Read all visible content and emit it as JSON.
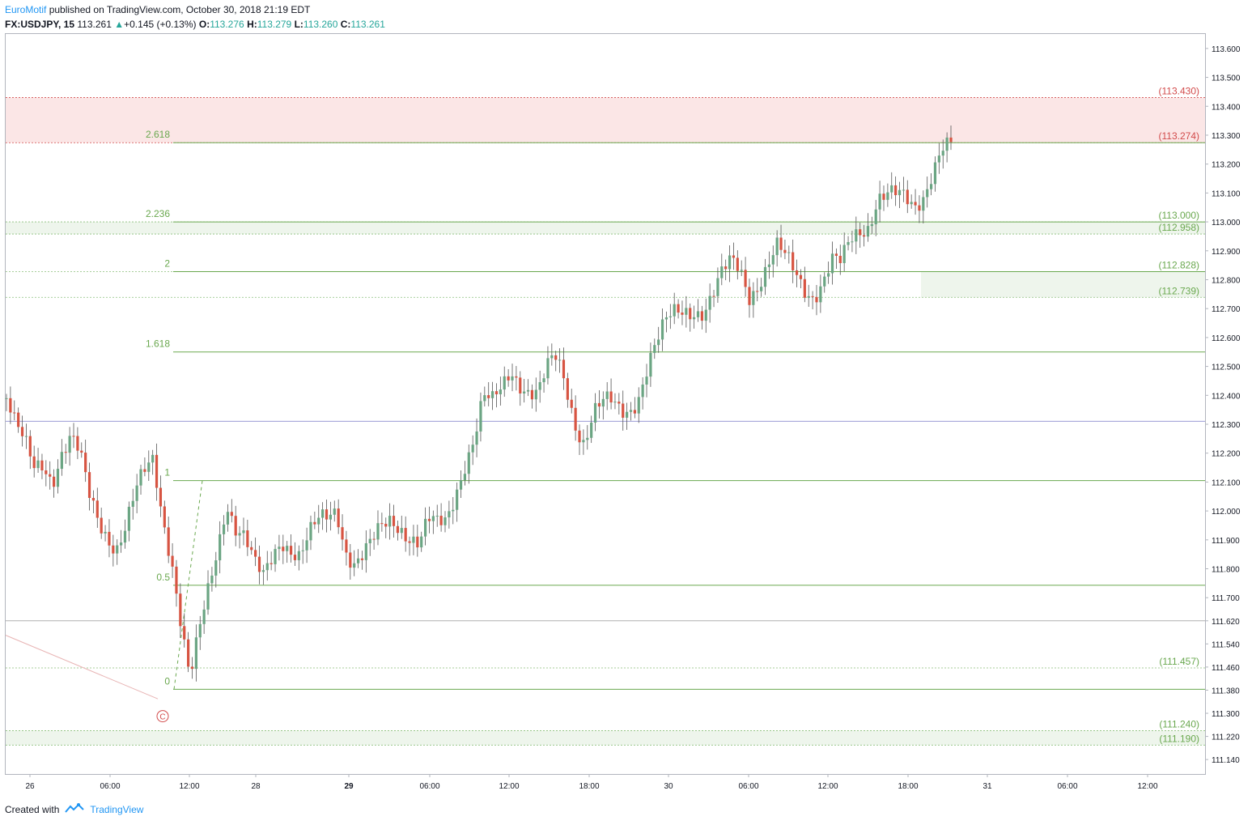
{
  "header": {
    "author": "EuroMotif",
    "published": "published on TradingView.com, October 30, 2018 21:19 EDT",
    "symbol": "FX:USDJPY, 15",
    "last": "113.261",
    "change": "+0.145 (+0.13%)",
    "o_label": "O:",
    "o": "113.276",
    "h_label": "H:",
    "h": "113.279",
    "l_label": "L:",
    "l": "113.260",
    "c_label": "C:",
    "c": "113.261"
  },
  "footer": {
    "created": "Created with",
    "brand": "TradingView"
  },
  "colors": {
    "up": "#6ba583",
    "down": "#d75442",
    "fib": "#6aa84f",
    "zone_red": "#fbe6e6",
    "zone_green": "#eef5ec",
    "red_label": "#d24b4b"
  },
  "chart_data": {
    "type": "candlestick",
    "symbol": "FX:USDJPY",
    "interval": "15",
    "ylim": [
      111.09,
      113.65
    ],
    "y_ticks": [
      "113.600",
      "113.500",
      "113.400",
      "113.300",
      "113.200",
      "113.100",
      "113.000",
      "112.900",
      "112.800",
      "112.700",
      "112.600",
      "112.500",
      "112.400",
      "112.300",
      "112.200",
      "112.100",
      "112.000",
      "111.900",
      "111.800",
      "111.700",
      "111.620",
      "111.540",
      "111.460",
      "111.380",
      "111.300",
      "111.220",
      "111.140"
    ],
    "x_ticks": [
      "26",
      "06:00",
      "12:00",
      "28",
      "29",
      "06:00",
      "12:00",
      "18:00",
      "30",
      "06:00",
      "12:00",
      "18:00",
      "31",
      "06:00",
      "12:00"
    ],
    "fib_levels": [
      {
        "label": "2.618",
        "price": 113.274
      },
      {
        "label": "2.236",
        "price": 113.0
      },
      {
        "label": "2",
        "price": 112.828
      },
      {
        "label": "1.618",
        "price": 112.55
      },
      {
        "label": "1",
        "price": 112.105
      },
      {
        "label": "0.5",
        "price": 111.743
      },
      {
        "label": "0",
        "price": 111.383
      }
    ],
    "price_labels": [
      {
        "text": "(113.430)",
        "price": 113.43,
        "color": "red"
      },
      {
        "text": "(113.274)",
        "price": 113.274,
        "color": "red"
      },
      {
        "text": "(113.000)",
        "price": 113.0,
        "color": "green"
      },
      {
        "text": "(112.958)",
        "price": 112.958,
        "color": "green"
      },
      {
        "text": "(112.828)",
        "price": 112.828,
        "color": "green"
      },
      {
        "text": "(112.739)",
        "price": 112.739,
        "color": "green"
      },
      {
        "text": "(111.457)",
        "price": 111.457,
        "color": "green"
      },
      {
        "text": "(111.240)",
        "price": 111.24,
        "color": "green"
      },
      {
        "text": "(111.190)",
        "price": 111.19,
        "color": "green"
      }
    ],
    "zones": [
      {
        "from": 113.274,
        "to": 113.43,
        "color": "red"
      },
      {
        "from": 112.958,
        "to": 113.0,
        "color": "green"
      },
      {
        "from": 112.739,
        "to": 112.828,
        "color": "green",
        "partial": true
      },
      {
        "from": 111.19,
        "to": 111.24,
        "color": "green"
      }
    ],
    "horizontal_lines": [
      {
        "price": 112.31,
        "color": "#9c9cd6"
      },
      {
        "price": 111.62,
        "color": "#b0b0b0"
      }
    ],
    "wave_label": "C",
    "close_path": [
      112.39,
      112.28,
      112.22,
      112.15,
      112.18,
      112.12,
      112.2,
      112.24,
      112.18,
      112.05,
      111.98,
      111.93,
      111.88,
      111.94,
      112.04,
      112.12,
      112.18,
      112.0,
      111.85,
      111.62,
      111.4,
      111.56,
      111.72,
      111.88,
      112.05,
      111.95,
      111.9,
      111.8,
      111.76,
      111.85,
      111.92,
      111.88,
      111.84,
      111.9,
      111.95,
      111.98,
      112.02,
      111.88,
      111.82,
      111.84,
      111.88,
      111.94,
      111.98,
      111.96,
      111.92,
      111.88,
      111.95,
      111.94,
      111.97,
      112.08,
      112.18,
      112.25,
      112.38,
      112.36,
      112.42,
      112.5,
      112.46,
      112.42,
      112.4,
      112.48,
      112.52,
      112.44,
      112.32,
      112.25,
      112.34,
      112.36,
      112.36,
      112.34,
      112.36,
      112.42,
      112.52,
      112.58,
      112.64,
      112.68,
      112.7,
      112.71,
      112.7,
      112.74,
      112.8,
      112.85,
      112.84,
      112.76,
      112.8,
      112.85,
      112.9,
      112.86,
      112.82,
      112.78,
      112.76,
      112.8,
      112.86,
      112.84,
      112.92,
      112.97,
      113.0,
      113.1,
      113.1,
      113.08,
      113.06,
      113.04,
      113.1,
      113.2,
      113.27,
      113.26
    ]
  }
}
